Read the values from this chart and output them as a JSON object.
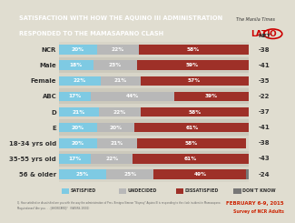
{
  "title_line1": "SATISFACTION WITH HOW THE AQUINO III ADMINISTRATION",
  "title_line2": "RESPONDED TO THE MAMASAPANO CLASH",
  "categories": [
    "NCR",
    "Male",
    "Female",
    "ABC",
    "D",
    "E",
    "18-34 yrs old",
    "35-55 yrs old",
    "56 & older"
  ],
  "satisfied": [
    20,
    18,
    22,
    17,
    21,
    20,
    20,
    17,
    25
  ],
  "undecided": [
    22,
    23,
    21,
    44,
    22,
    20,
    21,
    22,
    25
  ],
  "dissatisfied": [
    58,
    59,
    57,
    39,
    58,
    61,
    58,
    61,
    49
  ],
  "dontknow": [
    0,
    0,
    0,
    0,
    0,
    0,
    0,
    0,
    1
  ],
  "net": [
    -38,
    -41,
    -35,
    -22,
    -37,
    -41,
    -38,
    -43,
    -24
  ],
  "color_satisfied": "#7ecae3",
  "color_undecided": "#b8b8b8",
  "color_dissatisfied": "#9e3028",
  "color_dontknow": "#777777",
  "color_title_bg": "#c0392b",
  "color_title_text": "#ffffff",
  "color_logo_bg": "#c8c5b8",
  "color_chart_bg": "#e0ddd0",
  "color_net_bg": "#d0cdc0"
}
